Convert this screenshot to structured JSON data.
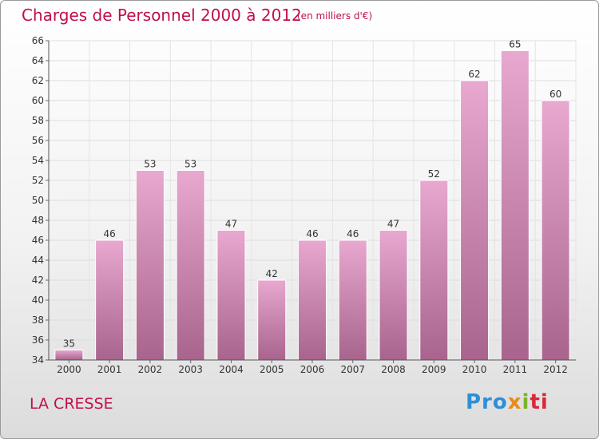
{
  "title": "Charges de Personnel 2000 à 2012",
  "subtitle": "(en milliers d'€)",
  "commune": "LA CRESSE",
  "logo": {
    "p1": "Pro",
    "p2": "x",
    "p3": "i",
    "p4": "ti"
  },
  "colors": {
    "accent": "#c01048",
    "bar_light": "#e8a8d0",
    "bar_dark": "#a8648c"
  },
  "chart_data": {
    "type": "bar",
    "categories": [
      "2000",
      "2001",
      "2002",
      "2003",
      "2004",
      "2005",
      "2006",
      "2007",
      "2008",
      "2009",
      "2010",
      "2011",
      "2012"
    ],
    "values": [
      35,
      46,
      53,
      53,
      47,
      42,
      46,
      46,
      47,
      52,
      62,
      65,
      60
    ],
    "data_labels": [
      "35",
      "46",
      "53",
      "53",
      "47",
      "42",
      "46",
      "46",
      "47",
      "52",
      "62",
      "65",
      "60"
    ],
    "ylim": [
      34,
      66
    ],
    "yticks": [
      "34",
      "36",
      "38",
      "40",
      "42",
      "44",
      "46",
      "48",
      "50",
      "52",
      "54",
      "56",
      "58",
      "60",
      "62",
      "64",
      "66"
    ],
    "grid": true,
    "legend": "none"
  }
}
